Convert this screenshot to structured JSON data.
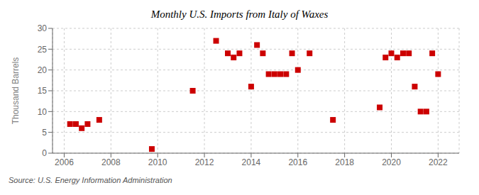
{
  "chart_data": {
    "type": "scatter",
    "title": "Monthly U.S. Imports from Italy of Waxes",
    "y_label": "Thousand Barrels",
    "source": "Source: U.S. Energy Information Administration",
    "x": [
      2006.25,
      2006.5,
      2006.75,
      2007.0,
      2007.5,
      2009.75,
      2011.5,
      2012.5,
      2013.0,
      2013.25,
      2013.5,
      2014.0,
      2014.25,
      2014.5,
      2014.75,
      2015.0,
      2015.25,
      2015.5,
      2015.75,
      2016.0,
      2016.5,
      2017.5,
      2019.5,
      2019.75,
      2020.0,
      2020.25,
      2020.5,
      2020.75,
      2021.0,
      2021.25,
      2021.5,
      2021.75,
      2022.0
    ],
    "values": [
      7,
      7,
      6,
      7,
      8,
      1,
      15,
      27,
      24,
      23,
      24,
      16,
      26,
      24,
      19,
      19,
      19,
      19,
      24,
      20,
      24,
      8,
      11,
      23,
      24,
      23,
      24,
      24,
      16,
      10,
      10,
      24,
      19
    ],
    "color": "#cc0000",
    "marker": "square",
    "xlim": [
      2005.5,
      2022.9
    ],
    "ylim": [
      0,
      30
    ],
    "xticks": [
      2006,
      2008,
      2010,
      2012,
      2014,
      2016,
      2018,
      2020,
      2022
    ],
    "yticks": [
      0,
      5,
      10,
      15,
      20,
      25,
      30
    ],
    "grid": true
  }
}
